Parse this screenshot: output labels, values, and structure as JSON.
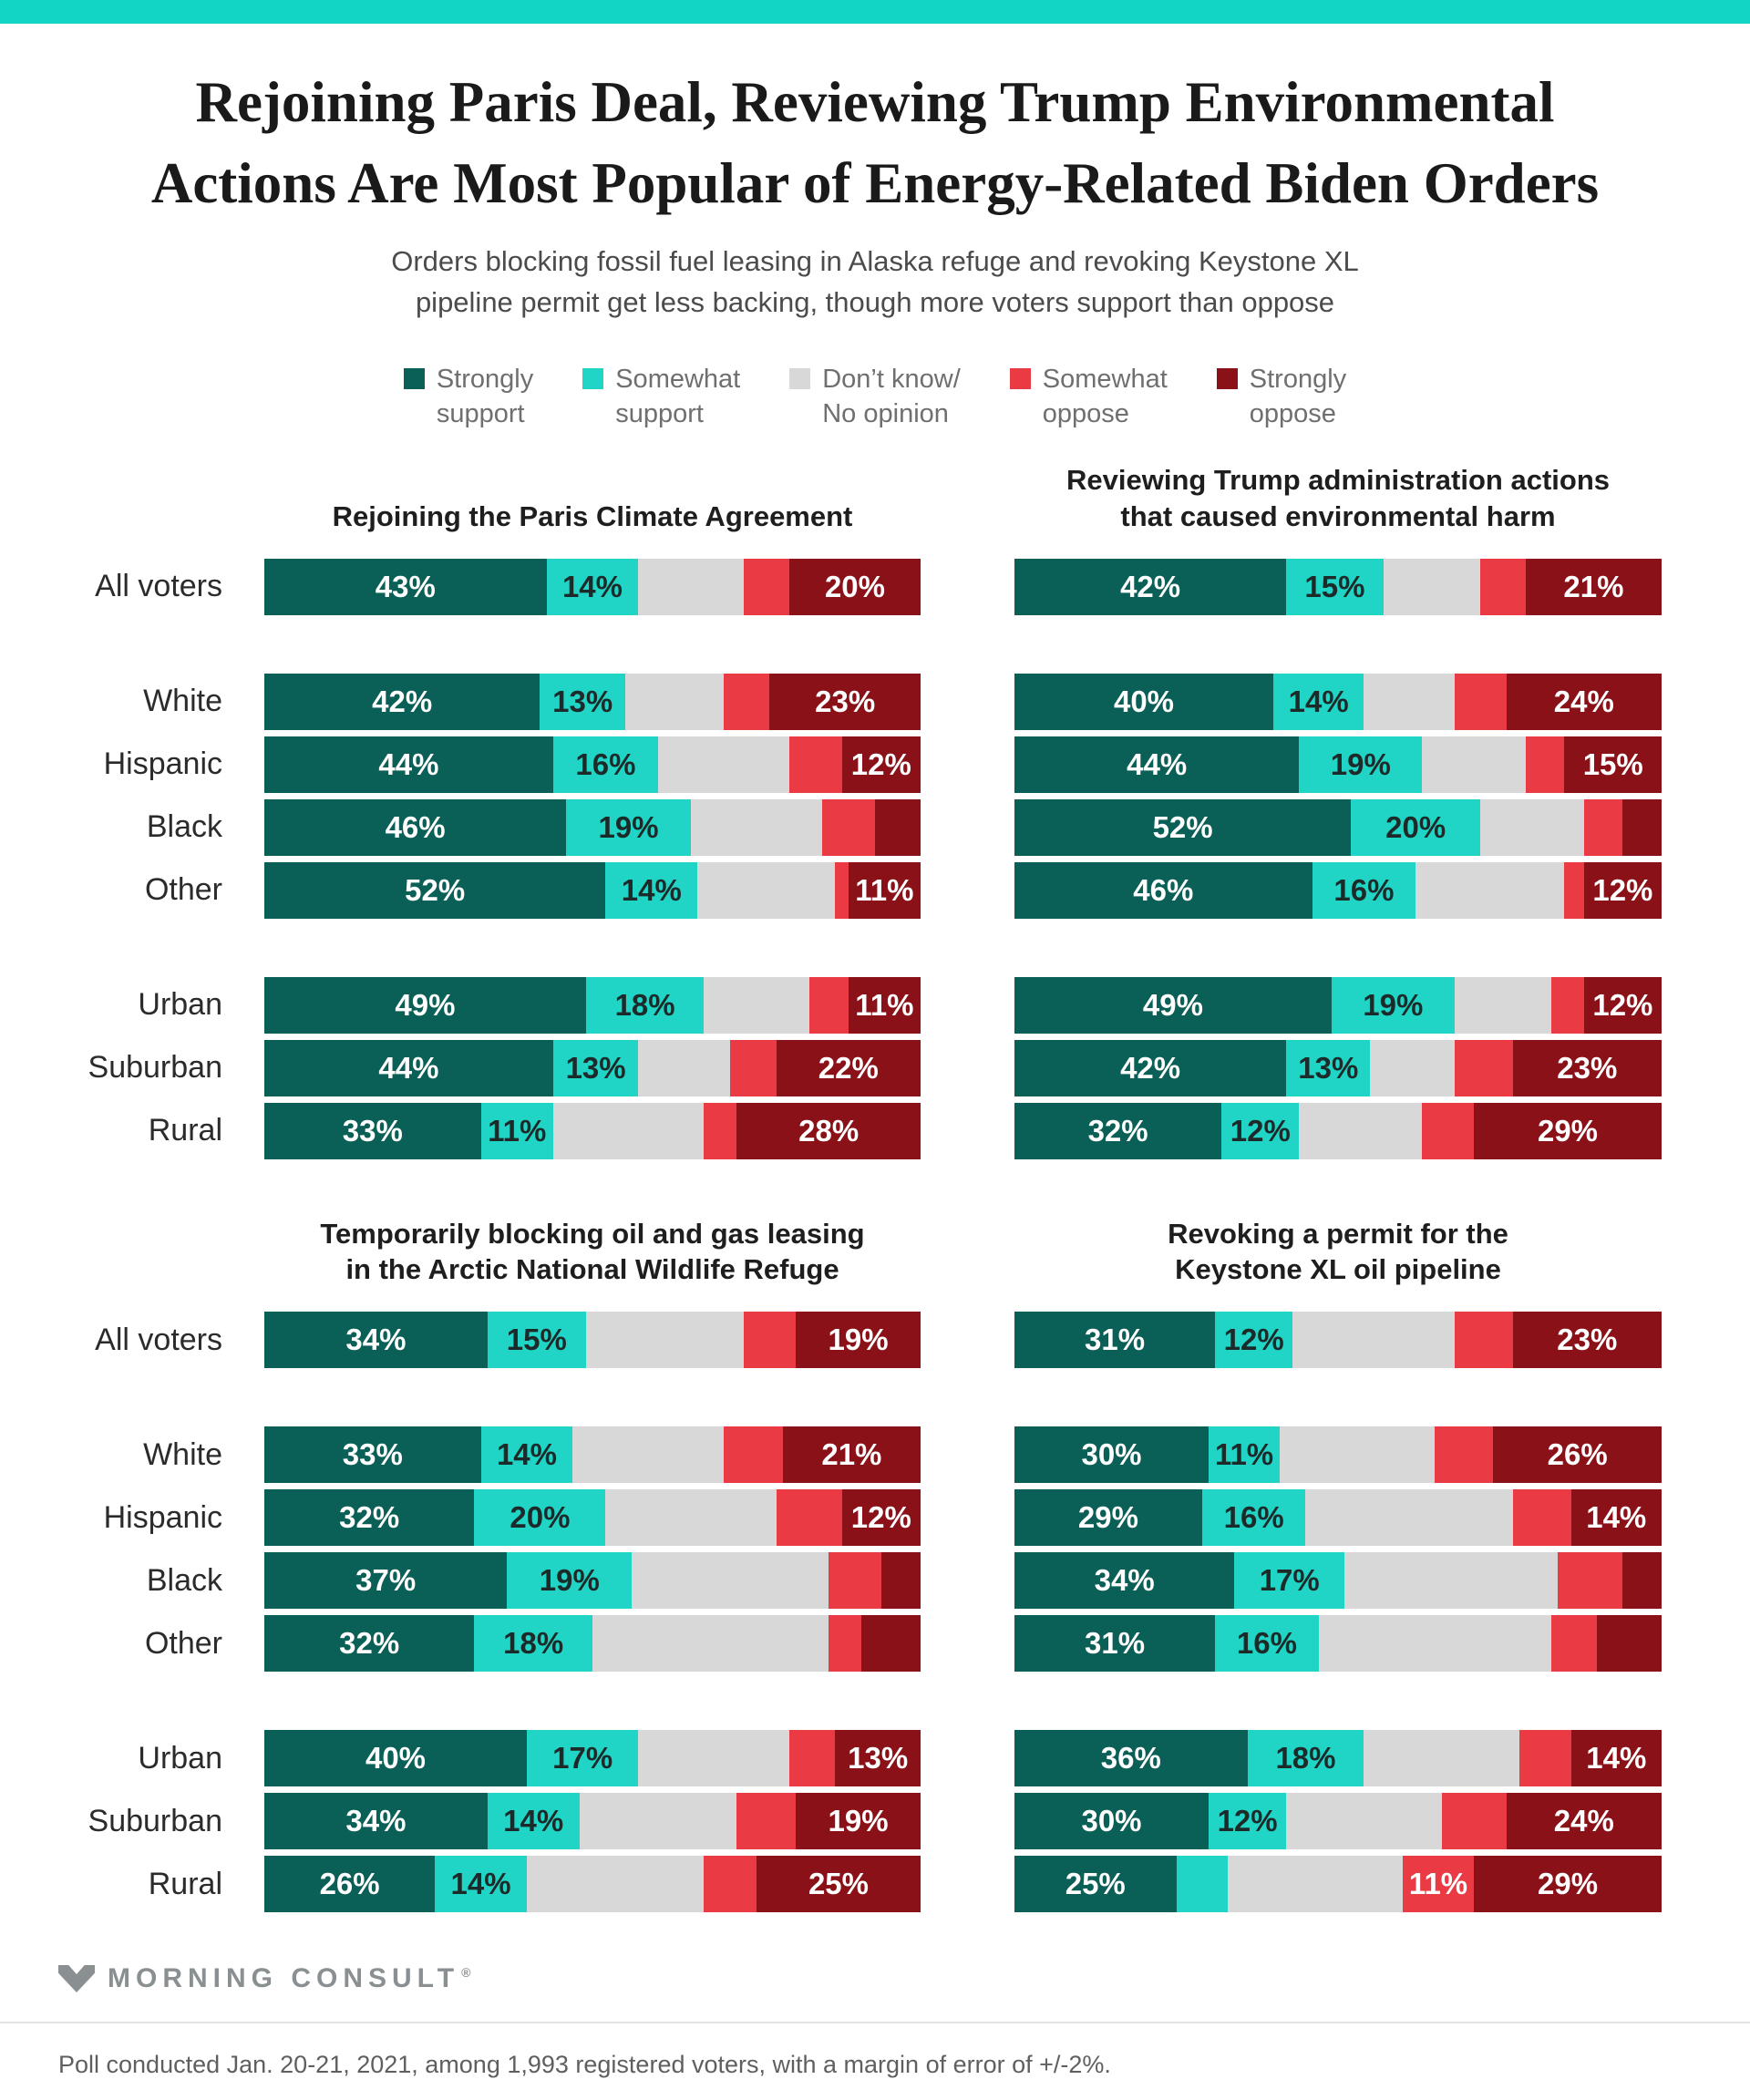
{
  "accent_color": "#13D5C5",
  "title": {
    "lines": [
      "Rejoining Paris Deal, Reviewing Trump Environmental",
      "Actions Are Most Popular of Energy-Related Biden Orders"
    ]
  },
  "subtitle": {
    "lines": [
      "Orders blocking fossil fuel leasing in Alaska refuge and revoking Keystone XL",
      "pipeline permit get less backing, though more voters support than oppose"
    ]
  },
  "legend": {
    "items": [
      {
        "key": "strongly-support",
        "lines": [
          "Strongly",
          "support"
        ],
        "color": "#0A5F57"
      },
      {
        "key": "somewhat-support",
        "lines": [
          "Somewhat",
          "support"
        ],
        "color": "#20D5C6"
      },
      {
        "key": "dont-know",
        "lines": [
          "Don’t know/",
          "No opinion"
        ],
        "color": "#D8D8D8"
      },
      {
        "key": "somewhat-oppose",
        "lines": [
          "Somewhat",
          "oppose"
        ],
        "color": "#EA3A43"
      },
      {
        "key": "strongly-oppose",
        "lines": [
          "Strongly",
          "oppose"
        ],
        "color": "#8A1117"
      }
    ]
  },
  "chart_data": {
    "type": "bar",
    "variant": "horizontal-stacked-100",
    "unit": "percent",
    "label_min": 11,
    "note": "Values without on-chart labels (Don't know and segments under 11%) are estimated from bar widths; each row sums to 100.",
    "segments": [
      {
        "key": "strongly_support",
        "label": "Strongly support",
        "color": "#0A5F57",
        "label_color": "#FFFFFF"
      },
      {
        "key": "somewhat_support",
        "label": "Somewhat support",
        "color": "#20D5C6",
        "label_color": "#1D2A2A"
      },
      {
        "key": "dont_know",
        "label": "Don’t know/No opinion",
        "color": "#D8D8D8",
        "label_color": "#555555"
      },
      {
        "key": "somewhat_oppose",
        "label": "Somewhat oppose",
        "color": "#EA3A43",
        "label_color": "#FFFFFF"
      },
      {
        "key": "strongly_oppose",
        "label": "Strongly oppose",
        "color": "#8A1117",
        "label_color": "#FFFFFF"
      }
    ],
    "categories": [
      "All voters",
      "White",
      "Hispanic",
      "Black",
      "Other",
      "Urban",
      "Suburban",
      "Rural"
    ],
    "category_groups": [
      [
        "All voters"
      ],
      [
        "White",
        "Hispanic",
        "Black",
        "Other"
      ],
      [
        "Urban",
        "Suburban",
        "Rural"
      ]
    ],
    "layout": {
      "sections": [
        [
          0,
          1
        ],
        [
          2,
          3
        ]
      ],
      "legend_position": "top-center",
      "grid": false
    },
    "panels": [
      {
        "id": "paris",
        "title_lines": [
          "Rejoining the Paris Climate Agreement"
        ],
        "rows": {
          "All voters": [
            43,
            14,
            16,
            7,
            20
          ],
          "White": [
            42,
            13,
            15,
            7,
            23
          ],
          "Hispanic": [
            44,
            16,
            20,
            8,
            12
          ],
          "Black": [
            46,
            19,
            20,
            8,
            7
          ],
          "Other": [
            52,
            14,
            21,
            2,
            11
          ],
          "Urban": [
            49,
            18,
            16,
            6,
            11
          ],
          "Suburban": [
            44,
            13,
            14,
            7,
            22
          ],
          "Rural": [
            33,
            11,
            23,
            5,
            28
          ]
        }
      },
      {
        "id": "reviewing-trump-actions",
        "title_lines": [
          "Reviewing Trump administration actions",
          "that caused environmental harm"
        ],
        "rows": {
          "All voters": [
            42,
            15,
            15,
            7,
            21
          ],
          "White": [
            40,
            14,
            14,
            8,
            24
          ],
          "Hispanic": [
            44,
            19,
            16,
            6,
            15
          ],
          "Black": [
            52,
            20,
            16,
            6,
            6
          ],
          "Other": [
            46,
            16,
            23,
            3,
            12
          ],
          "Urban": [
            49,
            19,
            15,
            5,
            12
          ],
          "Suburban": [
            42,
            13,
            13,
            9,
            23
          ],
          "Rural": [
            32,
            12,
            19,
            8,
            29
          ]
        }
      },
      {
        "id": "arctic-refuge-leasing",
        "title_lines": [
          "Temporarily blocking oil and gas leasing",
          "in the Arctic National Wildlife Refuge"
        ],
        "rows": {
          "All voters": [
            34,
            15,
            24,
            8,
            19
          ],
          "White": [
            33,
            14,
            23,
            9,
            21
          ],
          "Hispanic": [
            32,
            20,
            26,
            10,
            12
          ],
          "Black": [
            37,
            19,
            30,
            8,
            6
          ],
          "Other": [
            32,
            18,
            36,
            5,
            9
          ],
          "Urban": [
            40,
            17,
            23,
            7,
            13
          ],
          "Suburban": [
            34,
            14,
            24,
            9,
            19
          ],
          "Rural": [
            26,
            14,
            27,
            8,
            25
          ]
        }
      },
      {
        "id": "keystone-xl-permit",
        "title_lines": [
          "Revoking a permit for the",
          "Keystone XL oil pipeline"
        ],
        "rows": {
          "All voters": [
            31,
            12,
            25,
            9,
            23
          ],
          "White": [
            30,
            11,
            24,
            9,
            26
          ],
          "Hispanic": [
            29,
            16,
            32,
            9,
            14
          ],
          "Black": [
            34,
            17,
            33,
            10,
            6
          ],
          "Other": [
            31,
            16,
            36,
            7,
            10
          ],
          "Urban": [
            36,
            18,
            24,
            8,
            14
          ],
          "Suburban": [
            30,
            12,
            24,
            10,
            24
          ],
          "Rural": [
            25,
            8,
            27,
            11,
            29
          ]
        }
      }
    ]
  },
  "footer": {
    "logo_text": "MORNING CONSULT",
    "registered_mark": "®",
    "source": "Poll conducted Jan. 20-21, 2021, among 1,993 registered voters, with a margin of error of +/-2%."
  }
}
